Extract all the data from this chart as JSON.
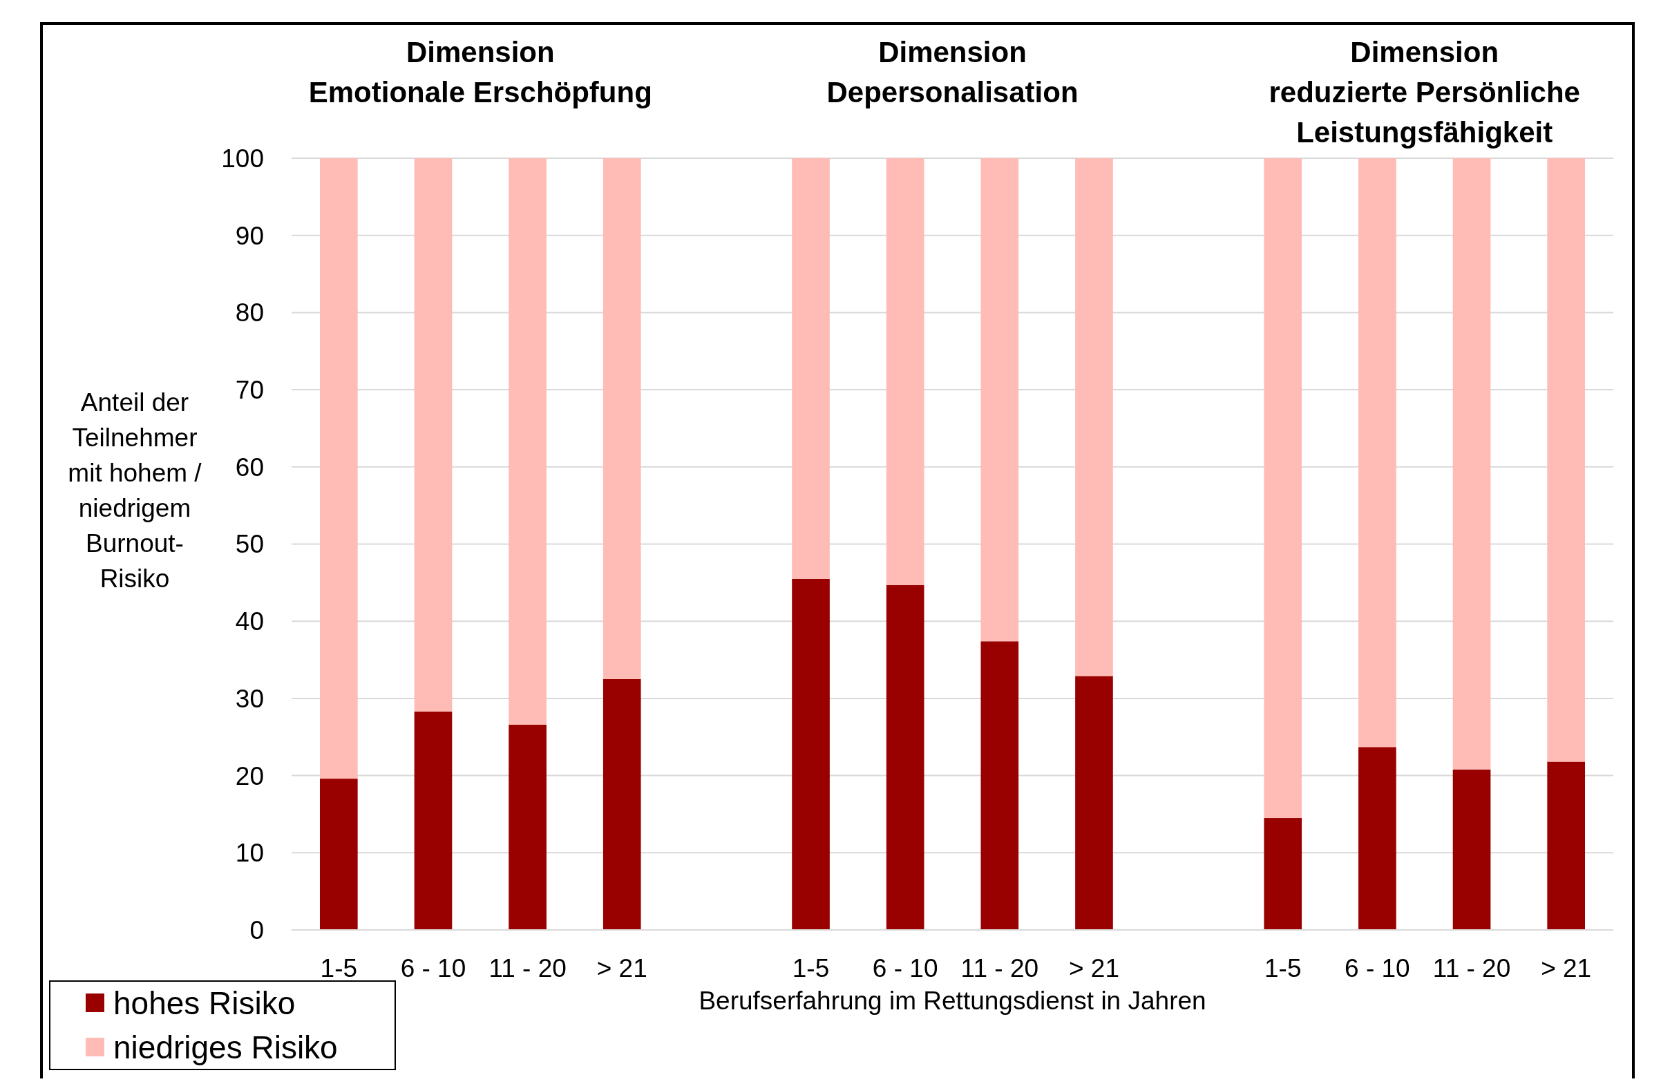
{
  "chart_data": {
    "type": "bar",
    "stacked": true,
    "xlabel": "Berufserfahrung im Rettungsdienst in Jahren",
    "ylabel": "Anteil der Teilnehmer mit hohem / niedrigem Burnout-Risiko",
    "annotations": [
      "Dimension\nEmotionale Erschöpfung",
      "Dimension\nDepersonalisation",
      "Dimension\nreduzierte Persönliche\nLeistungsfähigkeit"
    ],
    "categories": [
      "1-5",
      "6 - 10",
      "11 - 20",
      "> 21",
      null,
      "1-5",
      "6 - 10",
      "11 - 20",
      "> 21",
      null,
      "1-5",
      "6 - 10",
      "11 - 20",
      "> 21"
    ],
    "series": [
      {
        "name": "hohes Risiko",
        "color": "#990000",
        "values": [
          19.6,
          28.3,
          26.6,
          32.5,
          null,
          45.5,
          44.7,
          37.4,
          32.9,
          null,
          14.5,
          23.7,
          20.8,
          21.8
        ]
      },
      {
        "name": "niedriges Risiko",
        "color": "#ffbbb5",
        "values": [
          80.4,
          71.7,
          73.4,
          67.5,
          null,
          54.5,
          55.3,
          62.6,
          67.1,
          null,
          85.5,
          76.3,
          79.2,
          78.2
        ]
      }
    ],
    "ylim": [
      0,
      100
    ],
    "yticks": [
      0,
      10,
      20,
      30,
      40,
      50,
      60,
      70,
      80,
      90,
      100
    ],
    "grid": "y",
    "legend": "bottom left"
  }
}
